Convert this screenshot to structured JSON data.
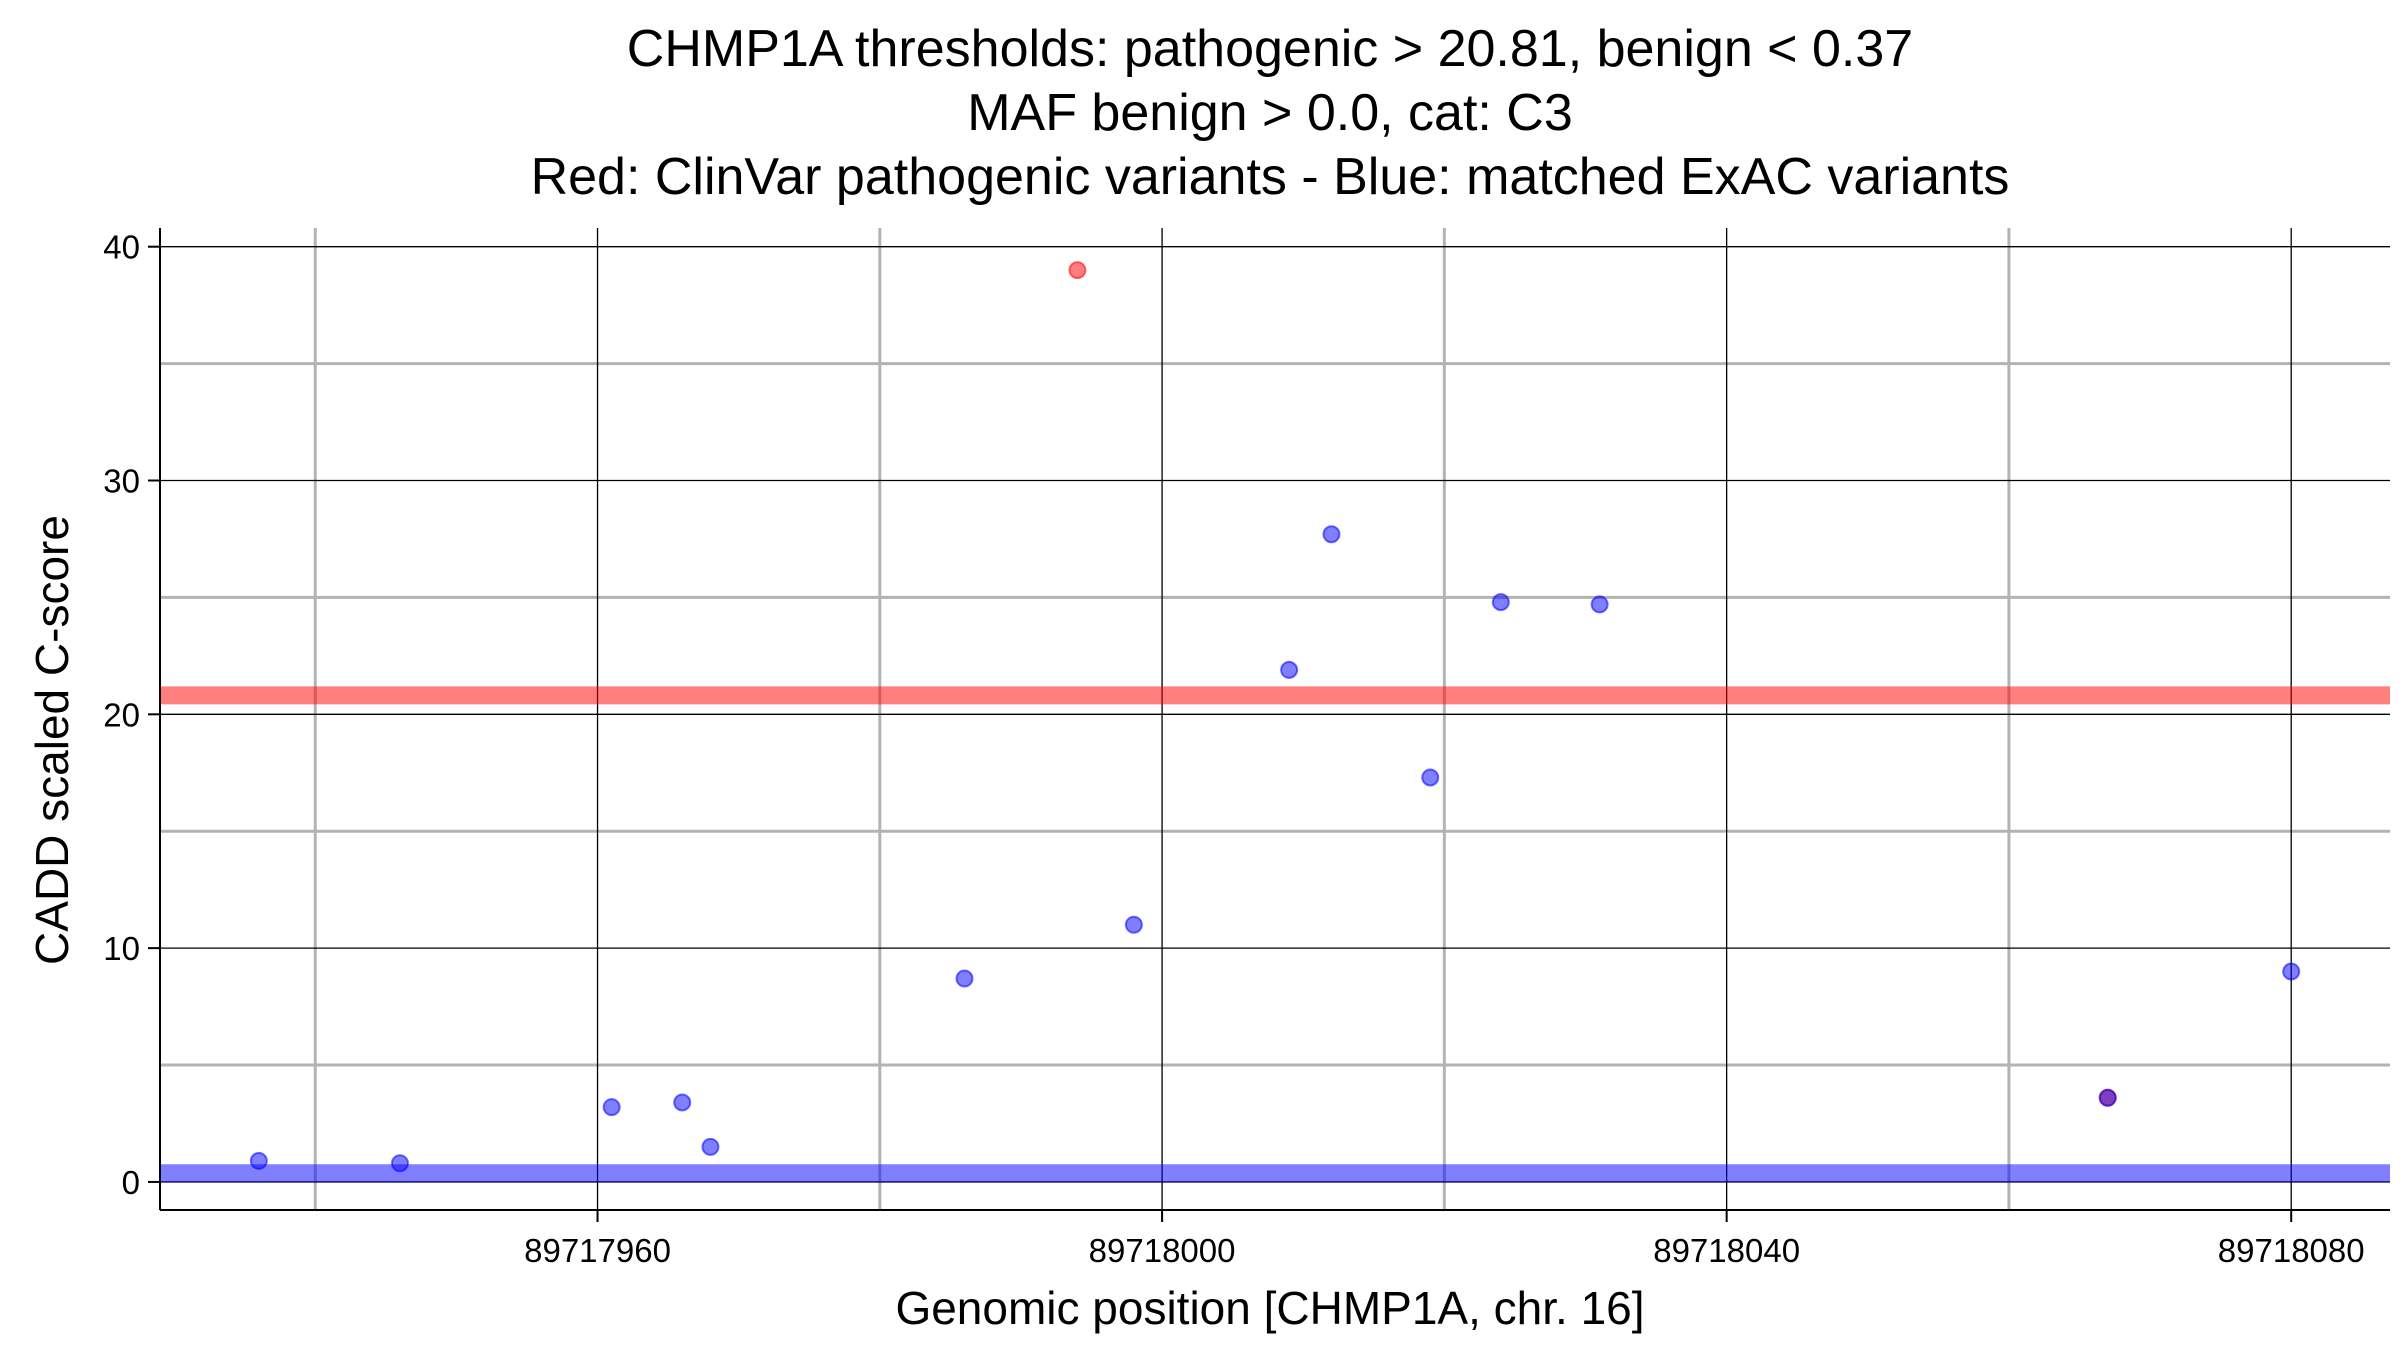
{
  "chart_data": {
    "type": "scatter",
    "title": [
      "CHMP1A thresholds: pathogenic > 20.81, benign < 0.37",
      "MAF benign > 0.0, cat: C3",
      "Red: ClinVar pathogenic variants - Blue: matched ExAC variants"
    ],
    "xlabel": "Genomic position [CHMP1A, chr. 16]",
    "ylabel": "CADD scaled C-score",
    "xlim": [
      89717929,
      89718087
    ],
    "ylim": [
      -1.2,
      40.8
    ],
    "x_ticks": [
      89717960,
      89718000,
      89718040,
      89718080
    ],
    "y_ticks": [
      0,
      10,
      20,
      30,
      40
    ],
    "x_minor_gridlines": [
      89717940,
      89717980,
      89718020,
      89718060
    ],
    "y_minor_gridlines": [
      5,
      15,
      25,
      35
    ],
    "grid": true,
    "thresholds": [
      {
        "name": "pathogenic",
        "value": 20.81,
        "color": "#ff0000"
      },
      {
        "name": "benign",
        "value": 0.37,
        "color": "#0000ff"
      }
    ],
    "series": [
      {
        "name": "ClinVar pathogenic variants",
        "color": "#ff0000",
        "points": [
          {
            "x": 89717994,
            "y": 39.0
          },
          {
            "x": 89718067,
            "y": 3.6
          }
        ]
      },
      {
        "name": "matched ExAC variants",
        "color": "#0000ff",
        "points": [
          {
            "x": 89717936,
            "y": 0.9
          },
          {
            "x": 89717946,
            "y": 0.8
          },
          {
            "x": 89717961,
            "y": 3.2
          },
          {
            "x": 89717966,
            "y": 3.4
          },
          {
            "x": 89717968,
            "y": 1.5
          },
          {
            "x": 89717986,
            "y": 8.7
          },
          {
            "x": 89717998,
            "y": 11.0
          },
          {
            "x": 89718009,
            "y": 21.9
          },
          {
            "x": 89718012,
            "y": 27.7
          },
          {
            "x": 89718019,
            "y": 17.3
          },
          {
            "x": 89718024,
            "y": 24.8
          },
          {
            "x": 89718031,
            "y": 24.7
          },
          {
            "x": 89718067,
            "y": 3.6
          },
          {
            "x": 89718080,
            "y": 9.0
          }
        ]
      }
    ]
  }
}
